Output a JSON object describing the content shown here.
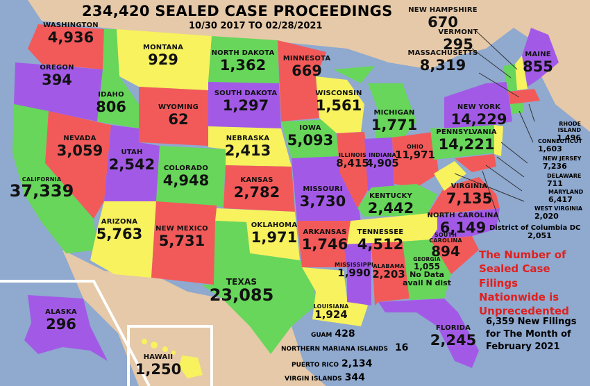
{
  "title": "234,420 SEALED CASE PROCEEDINGS",
  "dates": "10/30 2017 TO 02/28/2021",
  "states": {
    "washington": {
      "name": "WASHINGTON",
      "value": "4,936"
    },
    "oregon": {
      "name": "OREGON",
      "value": "394"
    },
    "california": {
      "name": "CALIFORNIA",
      "value": "37,339"
    },
    "nevada": {
      "name": "NEVADA",
      "value": "3,059"
    },
    "idaho": {
      "name": "IDAHO",
      "value": "806"
    },
    "montana": {
      "name": "MONTANA",
      "value": "929"
    },
    "wyoming": {
      "name": "WYOMING",
      "value": "62"
    },
    "utah": {
      "name": "UTAH",
      "value": "2,542"
    },
    "arizona": {
      "name": "ARIZONA",
      "value": "5,763"
    },
    "colorado": {
      "name": "COLORADO",
      "value": "4,948"
    },
    "new_mexico": {
      "name": "NEW MEXICO",
      "value": "5,731"
    },
    "north_dakota": {
      "name": "NORTH DAKOTA",
      "value": "1,362"
    },
    "south_dakota": {
      "name": "SOUTH DAKOTA",
      "value": "1,297"
    },
    "nebraska": {
      "name": "NEBRASKA",
      "value": "2,413"
    },
    "kansas": {
      "name": "KANSAS",
      "value": "2,782"
    },
    "oklahoma": {
      "name": "OKLAHOMA",
      "value": "1,971"
    },
    "texas": {
      "name": "TEXAS",
      "value": "23,085"
    },
    "minnesota": {
      "name": "MINNESOTA",
      "value": "669"
    },
    "iowa": {
      "name": "IOWA",
      "value": "5,093"
    },
    "missouri": {
      "name": "MISSOURI",
      "value": "3,730"
    },
    "arkansas": {
      "name": "ARKANSAS",
      "value": "1,746"
    },
    "louisiana": {
      "name": "LOUISIANA",
      "value": "1,924"
    },
    "wisconsin": {
      "name": "WISCONSIN",
      "value": "1,561"
    },
    "illinois": {
      "name": "ILLINOIS",
      "value": "8,415"
    },
    "michigan": {
      "name": "MICHIGAN",
      "value": "1,771"
    },
    "indiana": {
      "name": "INDIANA",
      "value": "4,905"
    },
    "ohio": {
      "name": "OHIO",
      "value": "11,971"
    },
    "kentucky": {
      "name": "KENTUCKY",
      "value": "2,442"
    },
    "tennessee": {
      "name": "TENNESSEE",
      "value": "4,512"
    },
    "mississippi": {
      "name": "MISSISSIPPI",
      "value": "1,990"
    },
    "alabama": {
      "name": "ALABAMA",
      "value": "2,203"
    },
    "georgia": {
      "name": "GEORGIA",
      "value": "1,055",
      "note1": "No Data",
      "note2": "avail N dist"
    },
    "florida": {
      "name": "FLORIDA",
      "value": "2,245"
    },
    "south_carolina": {
      "name": "SOUTH CAROLINA",
      "value": "894"
    },
    "north_carolina": {
      "name": "NORTH CAROLINA",
      "value": "6,149"
    },
    "virginia": {
      "name": "VIRGINIA",
      "value": "7,135"
    },
    "pennsylvania": {
      "name": "PENNSYLVANIA",
      "value": "14,221"
    },
    "new_york": {
      "name": "NEW YORK",
      "value": "14,229"
    },
    "maine": {
      "name": "MAINE",
      "value": "855"
    },
    "new_hampshire": {
      "name": "NEW HAMPSHIRE",
      "value": "670"
    },
    "vermont": {
      "name": "VERMONT",
      "value": "295"
    },
    "massachusetts": {
      "name": "MASSACHUSETTS",
      "value": "8,319"
    },
    "rhode_island": {
      "name": "RHODE ISLAND",
      "value": "1,496"
    },
    "connecticut": {
      "name": "CONNECTICUT",
      "value": "1,603"
    },
    "new_jersey": {
      "name": "NEW JERSEY",
      "value": "7,236"
    },
    "delaware": {
      "name": "DELAWARE",
      "value": "711"
    },
    "maryland": {
      "name": "MARYLAND",
      "value": "6,417"
    },
    "west_virginia": {
      "name": "WEST VIRGINIA",
      "value": "2,020"
    },
    "dc": {
      "name": "District of Columbia DC",
      "value": "2,051"
    },
    "alaska": {
      "name": "ALASKA",
      "value": "296"
    },
    "hawaii": {
      "name": "HAWAII",
      "value": "1,250"
    }
  },
  "territories": {
    "guam": {
      "name": "GUAM",
      "value": "428"
    },
    "northern_mariana": {
      "name": "NORTHERN MARIANA ISLANDS",
      "value": "16"
    },
    "puerto_rico": {
      "name": "PUERTO RICO",
      "value": "2,134"
    },
    "virgin_islands": {
      "name": "VIRGIN ISLANDS",
      "value": "344"
    }
  },
  "notes": {
    "red_line1": "The Number of",
    "red_line2": "Sealed Case Filings",
    "red_line3": "Nationwide is",
    "red_line4": "Unprecedented",
    "black_line1": "6,359 New Filings",
    "black_line2": "for The Month of",
    "black_line3": "February 2021"
  },
  "colors": {
    "ocean": "#8fa9cf",
    "land": "#e6c9a8",
    "red": "#f25a5a",
    "green": "#67d65a",
    "purple": "#a25ae6",
    "yellow": "#f7f25e",
    "callout_red": "#e0201e"
  }
}
